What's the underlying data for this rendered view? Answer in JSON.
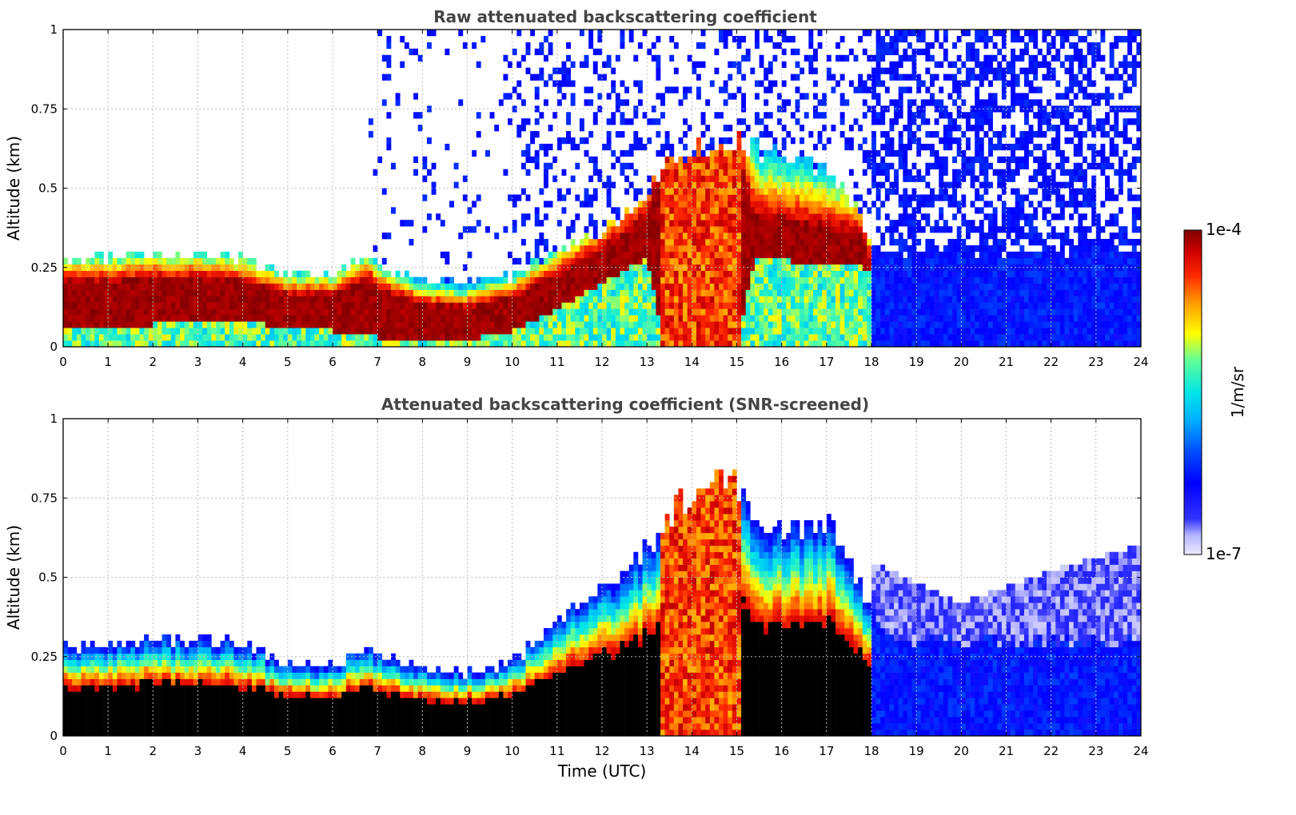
{
  "chart_data": [
    {
      "type": "heatmap",
      "title": "Raw attenuated backscattering coefficient",
      "xlabel": "",
      "ylabel": "Altitude (km)",
      "xlim": [
        0,
        24
      ],
      "ylim": [
        0,
        1
      ],
      "xticks": [
        "0",
        "1",
        "2",
        "3",
        "4",
        "5",
        "6",
        "7",
        "8",
        "9",
        "10",
        "11",
        "12",
        "13",
        "14",
        "15",
        "16",
        "17",
        "18",
        "19",
        "20",
        "21",
        "22",
        "23",
        "24"
      ],
      "yticks": [
        "0",
        "0.25",
        "0.5",
        "0.75",
        "1"
      ],
      "grid": true,
      "colormap": "jet",
      "color_scale": "log",
      "color_range": [
        1e-07,
        0.0001
      ],
      "layer_top_km": [
        [
          0,
          0.28
        ],
        [
          1,
          0.28
        ],
        [
          2,
          0.29
        ],
        [
          3,
          0.29
        ],
        [
          4,
          0.28
        ],
        [
          5,
          0.23
        ],
        [
          6,
          0.23
        ],
        [
          6.8,
          0.29
        ],
        [
          7,
          0.26
        ],
        [
          8,
          0.21
        ],
        [
          9,
          0.2
        ],
        [
          10,
          0.22
        ],
        [
          11,
          0.3
        ],
        [
          12,
          0.36
        ],
        [
          12.8,
          0.45
        ],
        [
          13.2,
          0.55
        ],
        [
          14,
          0.62
        ],
        [
          14.8,
          0.65
        ],
        [
          15.5,
          0.62
        ],
        [
          16,
          0.6
        ],
        [
          17,
          0.55
        ],
        [
          17.8,
          0.4
        ],
        [
          18,
          0.3
        ],
        [
          24,
          0.3
        ]
      ],
      "peak_band_km": [
        [
          0,
          0.05,
          0.2
        ],
        [
          1,
          0.06,
          0.2
        ],
        [
          2,
          0.07,
          0.21
        ],
        [
          3,
          0.08,
          0.21
        ],
        [
          4,
          0.08,
          0.2
        ],
        [
          5,
          0.06,
          0.16
        ],
        [
          6,
          0.05,
          0.16
        ],
        [
          6.8,
          0.05,
          0.21
        ],
        [
          7,
          0.03,
          0.18
        ],
        [
          8,
          0.01,
          0.13
        ],
        [
          9,
          0.02,
          0.12
        ],
        [
          10,
          0.05,
          0.15
        ],
        [
          11,
          0.12,
          0.22
        ],
        [
          12,
          0.2,
          0.3
        ],
        [
          13,
          0.28,
          0.4
        ],
        [
          13.4,
          0.0,
          0.6
        ],
        [
          15.0,
          0.0,
          0.6
        ],
        [
          15.4,
          0.28,
          0.4
        ],
        [
          17.8,
          0.25,
          0.35
        ],
        [
          18,
          0.25,
          0.25
        ]
      ]
    },
    {
      "type": "heatmap",
      "title": "Attenuated backscattering coefficient (SNR-screened)",
      "xlabel": "Time (UTC)",
      "ylabel": "Altitude (km)",
      "xlim": [
        0,
        24
      ],
      "ylim": [
        0,
        1
      ],
      "xticks": [
        "0",
        "1",
        "2",
        "3",
        "4",
        "5",
        "6",
        "7",
        "8",
        "9",
        "10",
        "11",
        "12",
        "13",
        "14",
        "15",
        "16",
        "17",
        "18",
        "19",
        "20",
        "21",
        "22",
        "23",
        "24"
      ],
      "yticks": [
        "0",
        "0.25",
        "0.5",
        "0.75",
        "1"
      ],
      "grid": true,
      "colormap": "jet",
      "color_scale": "log",
      "color_range": [
        1e-07,
        0.0001
      ],
      "layer_top_km": [
        [
          0,
          0.28
        ],
        [
          1,
          0.28
        ],
        [
          2,
          0.31
        ],
        [
          3,
          0.3
        ],
        [
          4,
          0.29
        ],
        [
          5,
          0.23
        ],
        [
          6,
          0.22
        ],
        [
          6.8,
          0.29
        ],
        [
          7,
          0.26
        ],
        [
          8,
          0.21
        ],
        [
          9,
          0.2
        ],
        [
          10,
          0.23
        ],
        [
          11,
          0.38
        ],
        [
          12,
          0.46
        ],
        [
          12.8,
          0.55
        ],
        [
          13.5,
          0.68
        ],
        [
          14.2,
          0.8
        ],
        [
          14.8,
          0.85
        ],
        [
          15.5,
          0.66
        ],
        [
          16,
          0.66
        ],
        [
          17,
          0.68
        ],
        [
          17.5,
          0.55
        ],
        [
          18,
          0.4
        ],
        [
          18.5,
          0.3
        ]
      ],
      "faint_top_km": [
        [
          18,
          0.55
        ],
        [
          20,
          0.42
        ],
        [
          22,
          0.52
        ],
        [
          24,
          0.6
        ]
      ]
    }
  ],
  "colorbar": {
    "label": "1/m/sr",
    "max_label": "1e-4",
    "min_label": "1e-7"
  }
}
